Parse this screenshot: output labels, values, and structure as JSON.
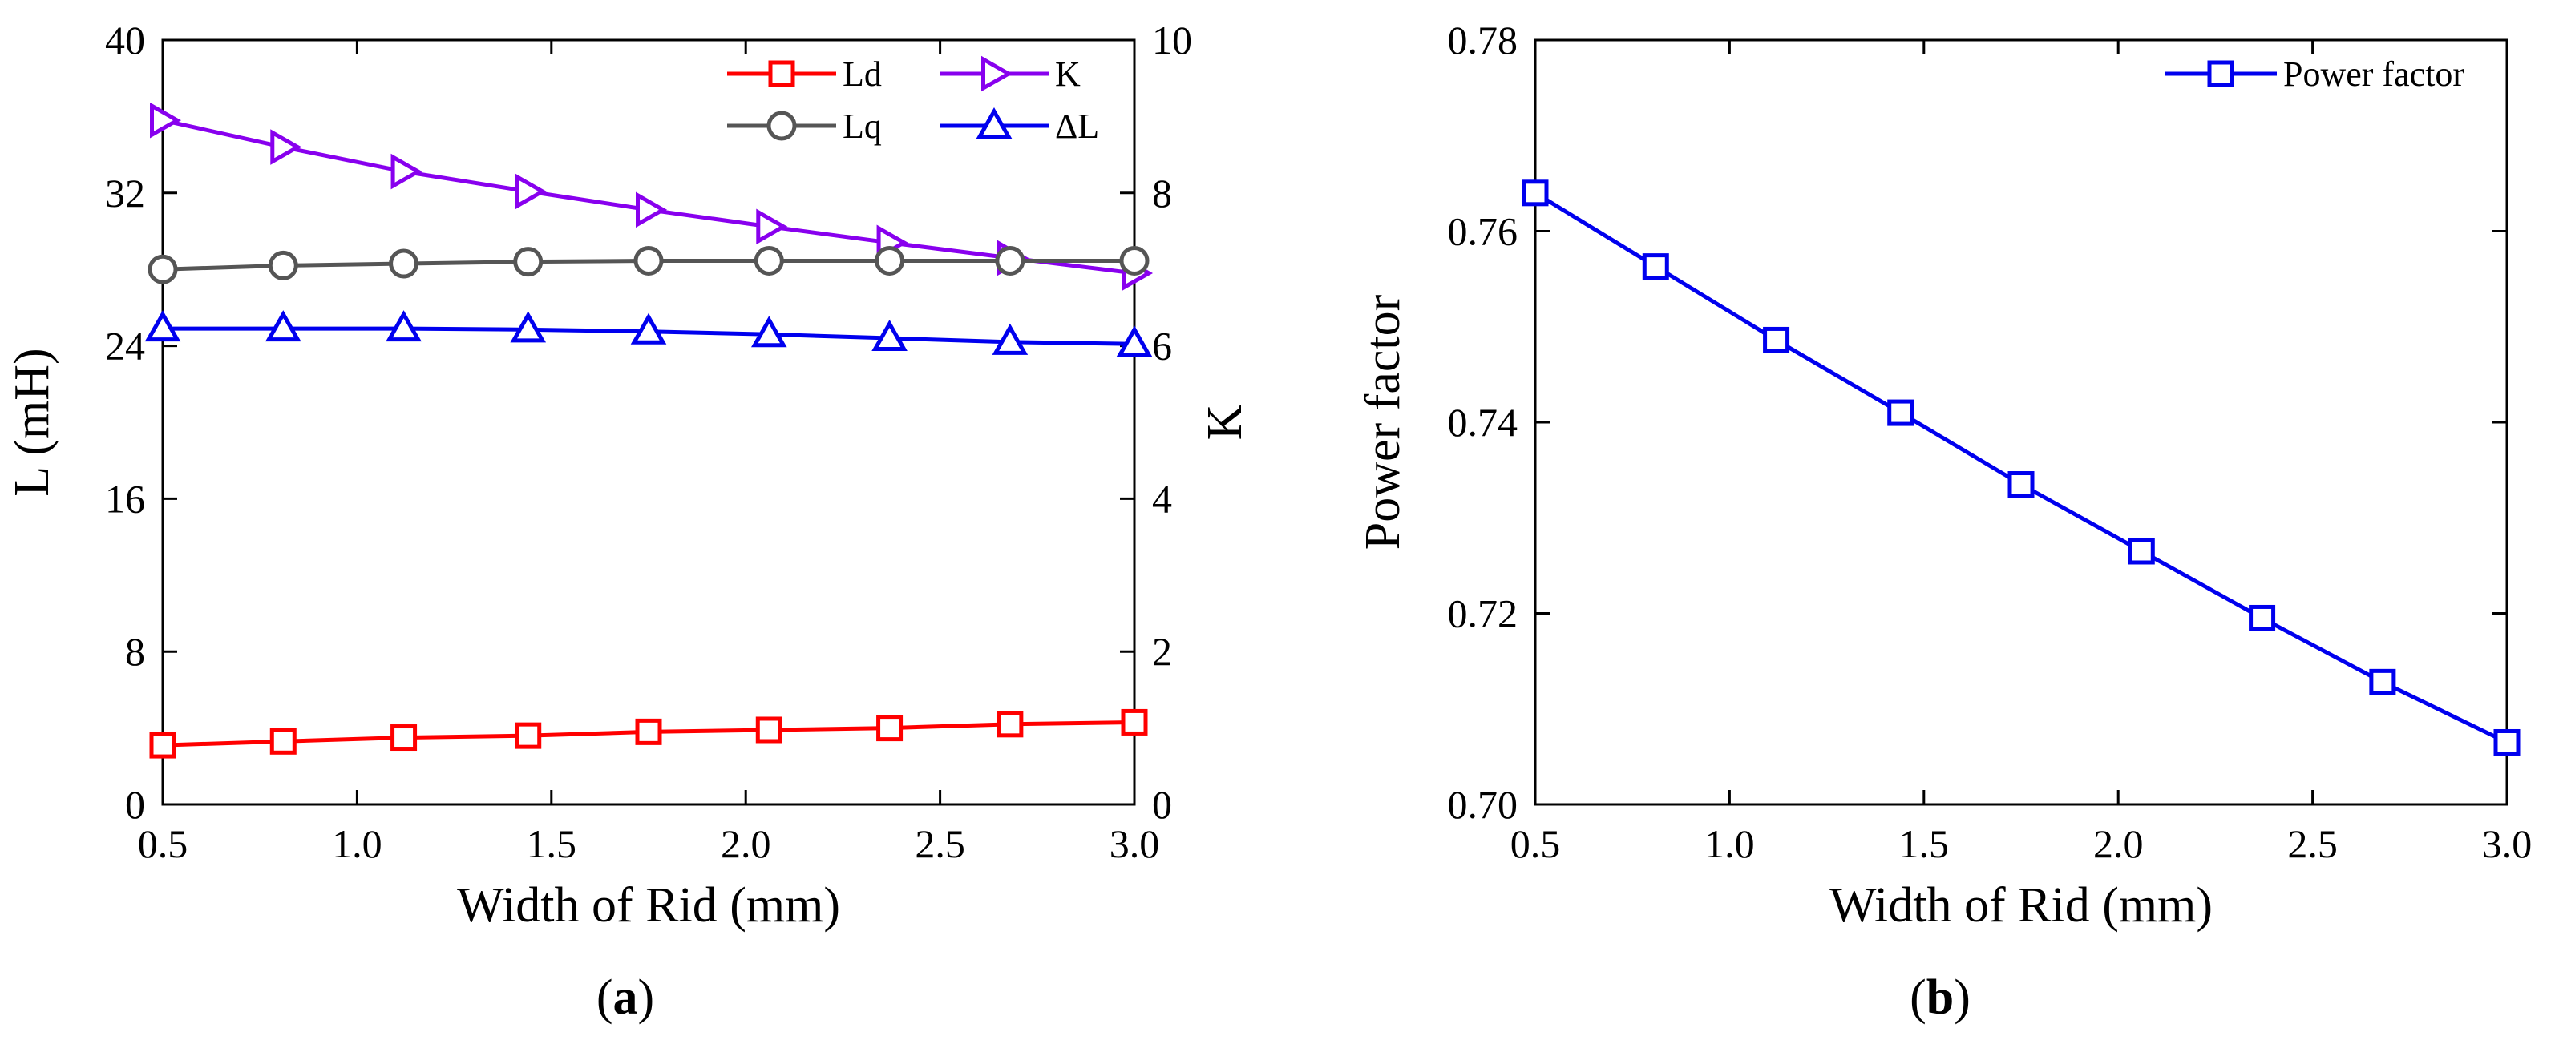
{
  "chart_data": [
    {
      "type": "line",
      "panel_label": {
        "open": "(",
        "letter": "a",
        "close": ")"
      },
      "xlabel": "Width of Rid (mm)",
      "ylabel": "L (mH)",
      "ylabel_right": "K",
      "xlim": [
        0.5,
        3.0
      ],
      "ylim": [
        0,
        40
      ],
      "ylim_right": [
        0,
        10
      ],
      "x": [
        0.5,
        0.81,
        1.12,
        1.44,
        1.75,
        2.06,
        2.37,
        2.68,
        3.0
      ],
      "xticks": [
        "0.5",
        "1.0",
        "1.5",
        "2.0",
        "2.5",
        "3.0"
      ],
      "yticks": [
        "0",
        "8",
        "16",
        "24",
        "32",
        "40"
      ],
      "yticks_right": [
        "0",
        "2",
        "4",
        "6",
        "8",
        "10"
      ],
      "grid": false,
      "legend_position": "top-right",
      "series": [
        {
          "name": "Ld",
          "axis": "left",
          "marker": "square",
          "color": "#ff0000",
          "values": [
            3.1,
            3.3,
            3.5,
            3.6,
            3.8,
            3.9,
            4.0,
            4.2,
            4.3
          ]
        },
        {
          "name": "K",
          "axis": "right",
          "marker": "triangle-right",
          "color": "#8800ee",
          "values": [
            8.95,
            8.6,
            8.28,
            8.02,
            7.78,
            7.56,
            7.35,
            7.15,
            6.95
          ]
        },
        {
          "name": "Lq",
          "axis": "left",
          "marker": "circle",
          "color": "#555555",
          "values": [
            28.0,
            28.2,
            28.3,
            28.4,
            28.45,
            28.45,
            28.45,
            28.45,
            28.45
          ]
        },
        {
          "name": "ΔL",
          "axis": "left",
          "marker": "triangle-up",
          "color": "#0000ee",
          "values": [
            24.9,
            24.9,
            24.9,
            24.85,
            24.75,
            24.6,
            24.4,
            24.2,
            24.1
          ]
        }
      ]
    },
    {
      "type": "line",
      "panel_label": {
        "open": "(",
        "letter": "b",
        "close": ")"
      },
      "xlabel": "Width of Rid (mm)",
      "ylabel": "Power factor",
      "xlim": [
        0.5,
        3.0
      ],
      "ylim": [
        0.7,
        0.78
      ],
      "x": [
        0.5,
        0.81,
        1.12,
        1.44,
        1.75,
        2.06,
        2.37,
        2.68,
        3.0
      ],
      "xticks": [
        "0.5",
        "1.0",
        "1.5",
        "2.0",
        "2.5",
        "3.0"
      ],
      "yticks": [
        "0.70",
        "0.72",
        "0.74",
        "0.76",
        "0.78"
      ],
      "grid": false,
      "legend_position": "top-right",
      "series": [
        {
          "name": "Power factor",
          "axis": "left",
          "marker": "square",
          "color": "#0000ee",
          "values": [
            0.764,
            0.7563,
            0.7486,
            0.741,
            0.7335,
            0.7265,
            0.7195,
            0.7128,
            0.7065
          ]
        }
      ]
    }
  ]
}
